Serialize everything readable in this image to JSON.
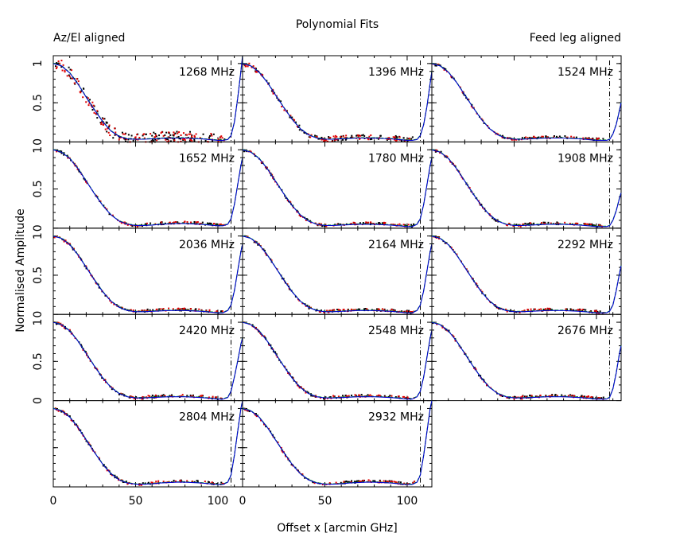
{
  "page": {
    "title": "Polynomial Fits",
    "left_label": "Az/El aligned",
    "right_label": "Feed leg aligned",
    "ylabel": "Normalised Amplitude",
    "xlabel": "Offset x [arcmin GHz]"
  },
  "colors": {
    "azel_points": "#000000",
    "feedleg_points": "#e00000",
    "fit_azel": "#00b000",
    "fit_feedleg": "#0000d0",
    "axis": "#000000",
    "left_label": "#000000",
    "right_label": "#c00000"
  },
  "chart_data": {
    "type": "line",
    "layout": "grid of panels, 3 columns",
    "xlim": [
      0,
      115
    ],
    "ylim": [
      0,
      1.1
    ],
    "x_ticks": [
      0,
      50,
      100
    ],
    "y_ticks": [
      0,
      0.5,
      1
    ],
    "y_tick_labels": [
      "0",
      "0.5",
      "1"
    ],
    "vertical_reference_line_x": 108,
    "vertical_reference_style": "dash-dot",
    "series_description": [
      "Az/El aligned (green fit, black points)",
      "Feed leg aligned (blue fit, red points)"
    ],
    "x": [
      0,
      5,
      10,
      15,
      20,
      25,
      30,
      35,
      40,
      45,
      50,
      55,
      60,
      65,
      70,
      75,
      80,
      85,
      90,
      95,
      100,
      103,
      106,
      108,
      110,
      112,
      114,
      115
    ],
    "panels": [
      {
        "label": "1268 MHz",
        "fit": [
          1.0,
          0.97,
          0.88,
          0.74,
          0.57,
          0.41,
          0.26,
          0.14,
          0.07,
          0.04,
          0.035,
          0.035,
          0.04,
          0.045,
          0.05,
          0.05,
          0.05,
          0.045,
          0.04,
          0.03,
          0.02,
          0.02,
          0.03,
          0.08,
          0.25,
          0.55,
          0.9,
          1.1
        ],
        "scatter": "high"
      },
      {
        "label": "1396 MHz",
        "fit": [
          1.0,
          0.97,
          0.89,
          0.76,
          0.6,
          0.44,
          0.29,
          0.17,
          0.09,
          0.05,
          0.035,
          0.035,
          0.04,
          0.045,
          0.05,
          0.05,
          0.05,
          0.045,
          0.04,
          0.03,
          0.02,
          0.02,
          0.03,
          0.08,
          0.22,
          0.45,
          0.75,
          0.9
        ],
        "scatter": "medium"
      },
      {
        "label": "1524 MHz",
        "fit": [
          1.0,
          0.97,
          0.89,
          0.76,
          0.6,
          0.44,
          0.29,
          0.17,
          0.09,
          0.05,
          0.035,
          0.035,
          0.04,
          0.045,
          0.05,
          0.05,
          0.05,
          0.045,
          0.04,
          0.03,
          0.02,
          0.02,
          0.02,
          0.03,
          0.1,
          0.22,
          0.4,
          0.5
        ],
        "scatter": "low"
      },
      {
        "label": "1652 MHz",
        "fit": [
          1.0,
          0.97,
          0.89,
          0.76,
          0.6,
          0.44,
          0.29,
          0.17,
          0.09,
          0.05,
          0.035,
          0.035,
          0.04,
          0.05,
          0.055,
          0.06,
          0.06,
          0.055,
          0.05,
          0.04,
          0.03,
          0.03,
          0.05,
          0.12,
          0.3,
          0.55,
          0.8,
          0.9
        ],
        "scatter": "low"
      },
      {
        "label": "1780 MHz",
        "fit": [
          1.0,
          0.97,
          0.89,
          0.76,
          0.6,
          0.44,
          0.29,
          0.17,
          0.09,
          0.05,
          0.035,
          0.035,
          0.04,
          0.045,
          0.05,
          0.05,
          0.05,
          0.045,
          0.04,
          0.03,
          0.02,
          0.02,
          0.05,
          0.12,
          0.3,
          0.55,
          0.8,
          0.9
        ],
        "scatter": "low"
      },
      {
        "label": "1908 MHz",
        "fit": [
          1.0,
          0.97,
          0.89,
          0.76,
          0.6,
          0.44,
          0.29,
          0.17,
          0.09,
          0.05,
          0.035,
          0.035,
          0.04,
          0.045,
          0.05,
          0.05,
          0.05,
          0.045,
          0.04,
          0.03,
          0.02,
          0.02,
          0.02,
          0.03,
          0.1,
          0.22,
          0.38,
          0.45
        ],
        "scatter": "low"
      },
      {
        "label": "2036 MHz",
        "fit": [
          1.0,
          0.97,
          0.89,
          0.76,
          0.6,
          0.44,
          0.29,
          0.17,
          0.09,
          0.05,
          0.035,
          0.035,
          0.04,
          0.045,
          0.05,
          0.05,
          0.05,
          0.045,
          0.04,
          0.03,
          0.02,
          0.02,
          0.05,
          0.12,
          0.3,
          0.55,
          0.8,
          0.9
        ],
        "scatter": "low"
      },
      {
        "label": "2164 MHz",
        "fit": [
          1.0,
          0.97,
          0.89,
          0.76,
          0.6,
          0.44,
          0.29,
          0.17,
          0.09,
          0.05,
          0.035,
          0.035,
          0.04,
          0.045,
          0.05,
          0.05,
          0.05,
          0.045,
          0.04,
          0.03,
          0.02,
          0.02,
          0.05,
          0.12,
          0.3,
          0.55,
          0.8,
          0.9
        ],
        "scatter": "low"
      },
      {
        "label": "2292 MHz",
        "fit": [
          1.0,
          0.97,
          0.89,
          0.76,
          0.6,
          0.44,
          0.29,
          0.17,
          0.09,
          0.05,
          0.035,
          0.035,
          0.04,
          0.045,
          0.05,
          0.05,
          0.05,
          0.045,
          0.04,
          0.03,
          0.02,
          0.02,
          0.02,
          0.04,
          0.12,
          0.3,
          0.52,
          0.62
        ],
        "scatter": "low"
      },
      {
        "label": "2420 MHz",
        "fit": [
          1.0,
          0.97,
          0.89,
          0.76,
          0.6,
          0.44,
          0.29,
          0.17,
          0.09,
          0.05,
          0.035,
          0.035,
          0.04,
          0.045,
          0.05,
          0.05,
          0.05,
          0.045,
          0.04,
          0.03,
          0.02,
          0.02,
          0.04,
          0.12,
          0.3,
          0.5,
          0.72,
          0.8
        ],
        "scatter": "low"
      },
      {
        "label": "2548 MHz",
        "fit": [
          1.0,
          0.97,
          0.89,
          0.76,
          0.6,
          0.44,
          0.29,
          0.17,
          0.09,
          0.05,
          0.035,
          0.035,
          0.04,
          0.045,
          0.05,
          0.05,
          0.05,
          0.045,
          0.04,
          0.03,
          0.02,
          0.02,
          0.05,
          0.12,
          0.3,
          0.55,
          0.8,
          0.9
        ],
        "scatter": "low"
      },
      {
        "label": "2676 MHz",
        "fit": [
          1.0,
          0.97,
          0.89,
          0.76,
          0.6,
          0.44,
          0.29,
          0.17,
          0.09,
          0.05,
          0.035,
          0.035,
          0.04,
          0.045,
          0.05,
          0.05,
          0.05,
          0.045,
          0.04,
          0.03,
          0.02,
          0.02,
          0.02,
          0.04,
          0.15,
          0.35,
          0.6,
          0.7
        ],
        "scatter": "low"
      },
      {
        "label": "2804 MHz",
        "fit": [
          1.0,
          0.97,
          0.89,
          0.76,
          0.6,
          0.44,
          0.29,
          0.17,
          0.09,
          0.05,
          0.035,
          0.035,
          0.04,
          0.05,
          0.055,
          0.06,
          0.06,
          0.055,
          0.05,
          0.04,
          0.03,
          0.03,
          0.06,
          0.15,
          0.4,
          0.7,
          1.0,
          1.1
        ],
        "scatter": "low"
      },
      {
        "label": "2932 MHz",
        "fit": [
          1.0,
          0.97,
          0.89,
          0.76,
          0.6,
          0.44,
          0.29,
          0.17,
          0.09,
          0.05,
          0.035,
          0.035,
          0.04,
          0.05,
          0.055,
          0.06,
          0.06,
          0.055,
          0.05,
          0.04,
          0.03,
          0.03,
          0.06,
          0.15,
          0.4,
          0.7,
          1.0,
          1.1
        ],
        "scatter": "low"
      }
    ]
  }
}
